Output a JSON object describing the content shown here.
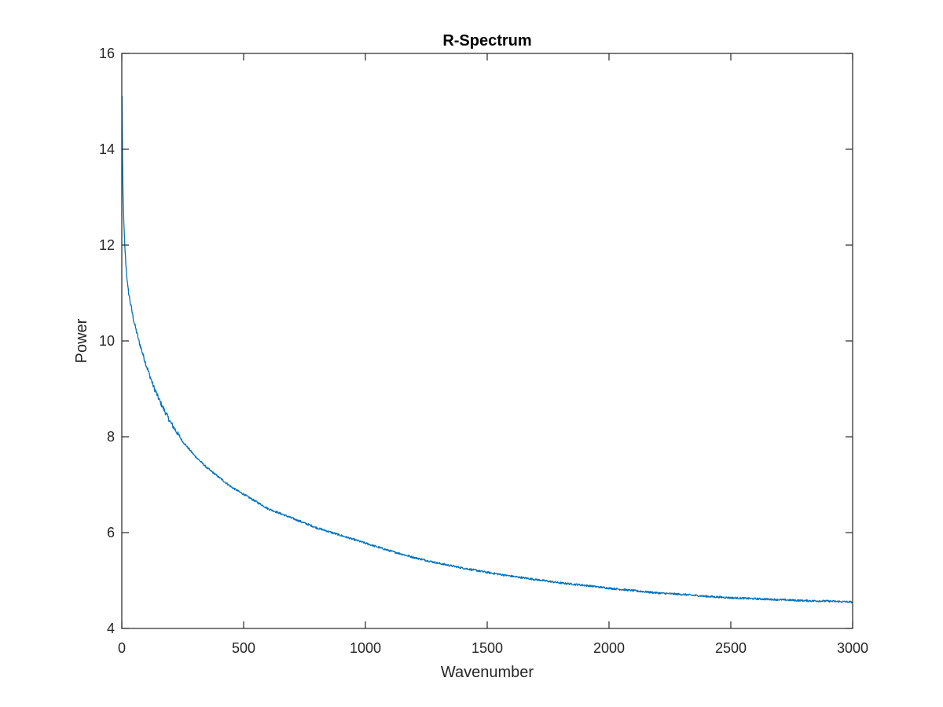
{
  "chart_data": {
    "type": "line",
    "title": "R-Spectrum",
    "xlabel": "Wavenumber",
    "ylabel": "Power",
    "xlim": [
      0,
      3000
    ],
    "ylim": [
      4,
      16
    ],
    "xticks": [
      "0",
      "500",
      "1000",
      "1500",
      "2000",
      "2500",
      "3000"
    ],
    "yticks": [
      "4",
      "6",
      "8",
      "10",
      "12",
      "14",
      "16"
    ],
    "grid": false,
    "line_color": "#0072BD",
    "axis_color": "#262626",
    "series": [
      {
        "x": [
          1,
          2,
          3,
          5,
          8,
          12,
          18,
          25,
          35,
          50,
          70,
          100,
          130,
          160,
          200,
          250,
          300,
          350,
          400,
          450,
          500,
          550,
          600,
          650,
          700,
          750,
          800,
          850,
          900,
          950,
          1000,
          1100,
          1200,
          1300,
          1400,
          1500,
          1600,
          1700,
          1800,
          1900,
          2000,
          2100,
          2200,
          2300,
          2400,
          2500,
          2600,
          2700,
          2800,
          2900,
          3000
        ],
        "y": [
          15.1,
          14.5,
          13.8,
          13.1,
          12.5,
          12.0,
          11.5,
          11.1,
          10.8,
          10.4,
          10.0,
          9.5,
          9.05,
          8.7,
          8.3,
          7.9,
          7.6,
          7.35,
          7.15,
          6.95,
          6.8,
          6.65,
          6.5,
          6.4,
          6.3,
          6.2,
          6.1,
          6.02,
          5.94,
          5.86,
          5.78,
          5.62,
          5.48,
          5.36,
          5.26,
          5.17,
          5.09,
          5.02,
          4.95,
          4.9,
          4.84,
          4.79,
          4.74,
          4.71,
          4.67,
          4.64,
          4.62,
          4.6,
          4.58,
          4.57,
          4.55
        ]
      }
    ]
  }
}
